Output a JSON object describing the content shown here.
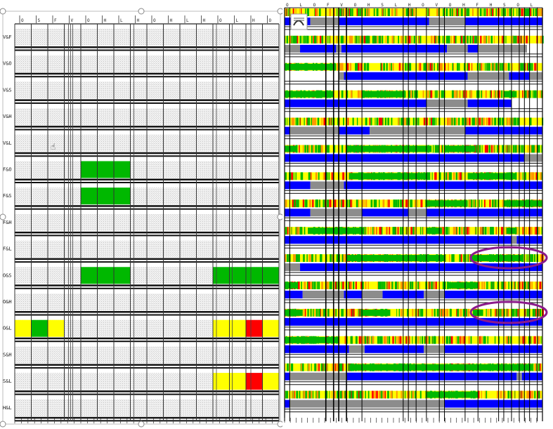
{
  "rows": [
    {
      "label": "V&F"
    },
    {
      "label": "V&O"
    },
    {
      "label": "V&S"
    },
    {
      "label": "V&H"
    },
    {
      "label": "V&L"
    },
    {
      "label": "F&O"
    },
    {
      "label": "F&S"
    },
    {
      "label": "F&H"
    },
    {
      "label": "F&L"
    },
    {
      "label": "O&S"
    },
    {
      "label": "O&H"
    },
    {
      "label": "O&L"
    },
    {
      "label": "S&H"
    },
    {
      "label": "S&L"
    },
    {
      "label": "H&L"
    }
  ],
  "left_top_ticks": [
    "O",
    "S",
    "F",
    "V",
    "O",
    "H",
    "L",
    "H",
    "O",
    "H",
    "L",
    "H",
    "O",
    "L",
    "H",
    "O"
  ],
  "right_top_ticks": [
    "O",
    "L",
    "O",
    "F",
    "V",
    "O",
    "H",
    "S",
    "L",
    "H",
    "O",
    "V",
    "O",
    "H",
    "F",
    "H",
    "S",
    "O",
    "L"
  ],
  "left_colored_cells": [
    {
      "row": 5,
      "col": 4,
      "color": "#00b800"
    },
    {
      "row": 5,
      "col": 5,
      "color": "#00b800"
    },
    {
      "row": 5,
      "col": 6,
      "color": "#00b800"
    },
    {
      "row": 6,
      "col": 4,
      "color": "#00b800"
    },
    {
      "row": 6,
      "col": 5,
      "color": "#00b800"
    },
    {
      "row": 6,
      "col": 6,
      "color": "#00b800"
    },
    {
      "row": 9,
      "col": 4,
      "color": "#00b800"
    },
    {
      "row": 9,
      "col": 5,
      "color": "#00b800"
    },
    {
      "row": 9,
      "col": 6,
      "color": "#00b800"
    },
    {
      "row": 9,
      "col": 12,
      "color": "#00b800"
    },
    {
      "row": 9,
      "col": 13,
      "color": "#00b800"
    },
    {
      "row": 9,
      "col": 14,
      "color": "#00b800"
    },
    {
      "row": 9,
      "col": 15,
      "color": "#00b800"
    },
    {
      "row": 11,
      "col": 0,
      "color": "#ffff00"
    },
    {
      "row": 11,
      "col": 1,
      "color": "#00b800"
    },
    {
      "row": 11,
      "col": 2,
      "color": "#ffff00"
    },
    {
      "row": 11,
      "col": 12,
      "color": "#ffff00"
    },
    {
      "row": 11,
      "col": 13,
      "color": "#ffff00"
    },
    {
      "row": 11,
      "col": 14,
      "color": "#ff0000"
    },
    {
      "row": 11,
      "col": 15,
      "color": "#ffff00"
    },
    {
      "row": 13,
      "col": 12,
      "color": "#ffff00"
    },
    {
      "row": 13,
      "col": 13,
      "color": "#ffff00"
    },
    {
      "row": 13,
      "col": 14,
      "color": "#ff0000"
    },
    {
      "row": 13,
      "col": 15,
      "color": "#ffff00"
    }
  ],
  "colors": {
    "green": "#00b800",
    "yellow": "#ffff00",
    "red": "#ff0000",
    "blue": "#0000ff",
    "gray": "#8c8c8c",
    "orange": "#ff9900",
    "highlight": "#8b1a8b"
  },
  "right_rows": [
    {
      "blue": [
        [
          0.0,
          0.1
        ],
        [
          0.21,
          0.56
        ],
        [
          0.7,
          1.0
        ]
      ],
      "gray": [
        [
          0.1,
          0.21
        ],
        [
          0.56,
          0.7
        ]
      ],
      "green": []
    },
    {
      "blue": [
        [
          0.06,
          0.2
        ],
        [
          0.22,
          0.63
        ],
        [
          0.71,
          0.75
        ]
      ],
      "gray": [
        [
          0.0,
          0.06
        ],
        [
          0.2,
          0.22
        ],
        [
          0.63,
          0.71
        ],
        [
          0.75,
          0.94
        ]
      ],
      "green": []
    },
    {
      "blue": [
        [
          0.23,
          0.71
        ],
        [
          0.87,
          0.95
        ]
      ],
      "gray": [
        [
          0.21,
          0.23
        ],
        [
          0.71,
          0.87
        ],
        [
          0.95,
          1.0
        ]
      ],
      "green": [
        [
          0.0,
          0.2
        ]
      ]
    },
    {
      "blue": [
        [
          0.0,
          0.55
        ],
        [
          0.71,
          0.88
        ]
      ],
      "gray": [
        [
          0.55,
          0.71
        ]
      ],
      "green": [
        [
          0.0,
          0.19
        ],
        [
          0.3,
          0.47
        ],
        [
          0.85,
          0.9
        ]
      ]
    },
    {
      "blue": [
        [
          0.0,
          0.02
        ],
        [
          0.21,
          0.33
        ],
        [
          0.7,
          1.0
        ]
      ],
      "gray": [
        [
          0.02,
          0.21
        ],
        [
          0.33,
          0.7
        ]
      ],
      "green": []
    },
    {
      "blue": [
        [
          0.0,
          0.93
        ]
      ],
      "gray": [
        [
          0.93,
          1.0
        ]
      ],
      "green": [
        [
          0.0,
          0.05
        ],
        [
          0.24,
          0.57
        ],
        [
          0.62,
          0.74
        ]
      ]
    },
    {
      "blue": [
        [
          0.0,
          0.1
        ],
        [
          0.23,
          1.0
        ]
      ],
      "gray": [
        [
          0.1,
          0.23
        ]
      ],
      "green": [
        [
          0.25,
          0.56
        ],
        [
          0.71,
          0.9
        ]
      ]
    },
    {
      "blue": [
        [
          0.0,
          0.1
        ],
        [
          0.3,
          0.48
        ],
        [
          0.55,
          1.0
        ]
      ],
      "gray": [
        [
          0.1,
          0.3
        ],
        [
          0.48,
          0.55
        ]
      ],
      "green": [
        [
          0.55,
          0.71
        ],
        [
          0.85,
          1.0
        ]
      ]
    },
    {
      "blue": [
        [
          0.0,
          0.88
        ],
        [
          0.9,
          1.0
        ]
      ],
      "gray": [
        [
          0.88,
          0.9
        ]
      ],
      "green": [
        [
          0.09,
          0.31
        ],
        [
          0.55,
          0.61
        ],
        [
          0.86,
          0.9
        ]
      ]
    },
    {
      "blue": [
        [
          0.06,
          1.0
        ]
      ],
      "gray": [
        [
          0.0,
          0.06
        ]
      ],
      "green": [
        [
          0.24,
          0.62
        ],
        [
          0.72,
          0.92
        ]
      ]
    },
    {
      "blue": [
        [
          0.0,
          0.07
        ],
        [
          0.23,
          0.3
        ],
        [
          0.38,
          0.54
        ],
        [
          0.62,
          1.0
        ]
      ],
      "gray": [
        [
          0.07,
          0.23
        ],
        [
          0.3,
          0.38
        ],
        [
          0.54,
          0.62
        ]
      ],
      "green": [
        [
          0.0,
          0.05
        ],
        [
          0.63,
          0.75
        ]
      ]
    },
    {
      "blue": [
        [
          0.0,
          1.0
        ]
      ],
      "gray": [],
      "green": [
        [
          0.0,
          0.07
        ],
        [
          0.3,
          0.41
        ],
        [
          0.73,
          0.77
        ]
      ]
    },
    {
      "blue": [
        [
          0.0,
          0.25
        ],
        [
          0.31,
          0.54
        ],
        [
          0.62,
          1.0
        ]
      ],
      "gray": [
        [
          0.25,
          0.31
        ],
        [
          0.54,
          0.62
        ]
      ],
      "green": [
        [
          0.0,
          0.21
        ]
      ]
    },
    {
      "blue": [
        [
          0.0,
          0.02
        ],
        [
          0.24,
          0.9
        ],
        [
          0.92,
          1.0
        ]
      ],
      "gray": [
        [
          0.02,
          0.24
        ],
        [
          0.9,
          0.92
        ]
      ],
      "green": [
        [
          0.25,
          0.96
        ]
      ]
    },
    {
      "blue": [
        [
          0.0,
          0.02
        ],
        [
          0.62,
          1.0
        ]
      ],
      "gray": [
        [
          0.02,
          0.62
        ]
      ],
      "green": [
        [
          0.55,
          0.75
        ]
      ]
    }
  ],
  "highlights": [
    {
      "row": 9,
      "label": "O&S"
    },
    {
      "row": 11,
      "label": "O&L"
    }
  ]
}
